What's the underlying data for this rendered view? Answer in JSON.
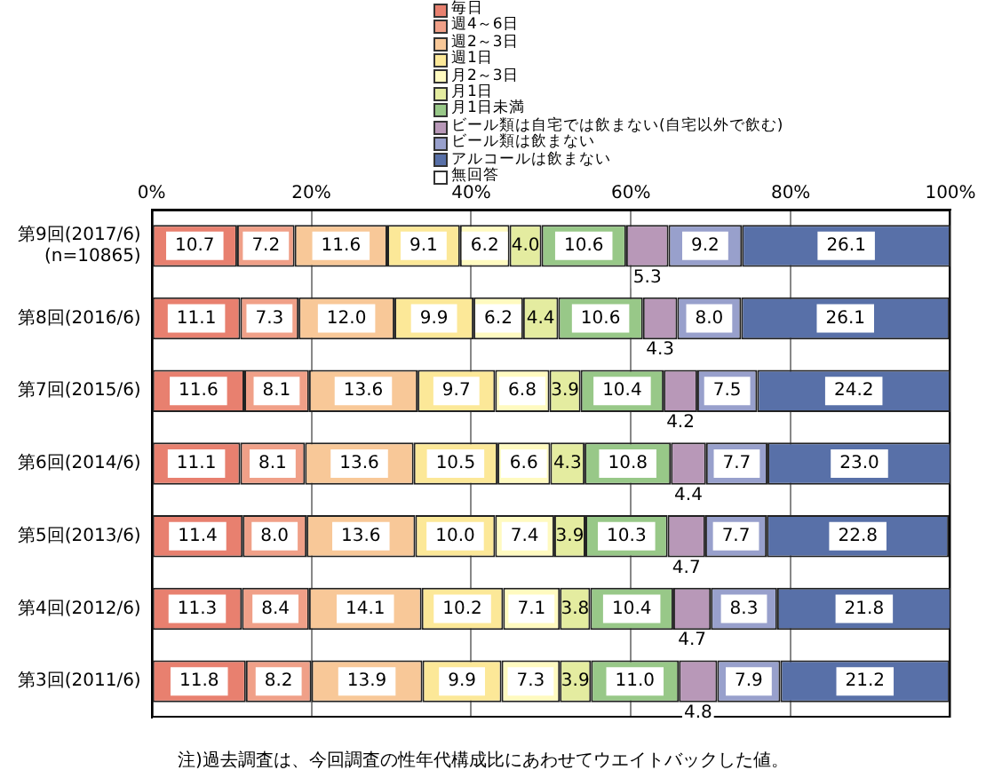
{
  "chart_data": {
    "type": "bar",
    "orientation": "horizontal",
    "stacked": true,
    "grid": "x",
    "legend": "top",
    "categories": [
      "第9回(2017/6)\n(n=10865)",
      "第8回(2016/6)",
      "第7回(2015/6)",
      "第6回(2014/6)",
      "第5回(2013/6)",
      "第4回(2012/6)",
      "第3回(2011/6)"
    ],
    "xlim": [
      0,
      100
    ],
    "xticks": [
      {
        "value": 0,
        "label": "0%"
      },
      {
        "value": 20,
        "label": "20%"
      },
      {
        "value": 40,
        "label": "40%"
      },
      {
        "value": 60,
        "label": "60%"
      },
      {
        "value": 80,
        "label": "80%"
      },
      {
        "value": 100,
        "label": "100%"
      }
    ],
    "series": [
      {
        "name": "毎日",
        "color": "#e8806f",
        "values": [
          10.7,
          11.1,
          11.6,
          11.1,
          11.4,
          11.3,
          11.8
        ],
        "value_labels": [
          "10.7",
          "11.1",
          "11.6",
          "11.1",
          "11.4",
          "11.3",
          "11.8"
        ]
      },
      {
        "name": "週4～6日",
        "color": "#f0a088",
        "values": [
          7.2,
          7.3,
          8.1,
          8.1,
          8.0,
          8.4,
          8.2
        ],
        "value_labels": [
          "7.2",
          "7.3",
          "8.1",
          "8.1",
          "8.0",
          "8.4",
          "8.2"
        ]
      },
      {
        "name": "週2～3日",
        "color": "#f8c898",
        "values": [
          11.6,
          12.0,
          13.6,
          13.6,
          13.6,
          14.1,
          13.9
        ],
        "value_labels": [
          "11.6",
          "12.0",
          "13.6",
          "13.6",
          "13.6",
          "14.1",
          "13.9"
        ]
      },
      {
        "name": "週1日",
        "color": "#fce898",
        "values": [
          9.1,
          9.9,
          9.7,
          10.5,
          10.0,
          10.2,
          9.9
        ],
        "value_labels": [
          "9.1",
          "9.9",
          "9.7",
          "10.5",
          "10.0",
          "10.2",
          "9.9"
        ]
      },
      {
        "name": "月2～3日",
        "color": "#fffac0",
        "values": [
          6.2,
          6.2,
          6.8,
          6.6,
          7.4,
          7.1,
          7.3
        ],
        "value_labels": [
          "6.2",
          "6.2",
          "6.8",
          "6.6",
          "7.4",
          "7.1",
          "7.3"
        ]
      },
      {
        "name": "月1日",
        "color": "#e4eca0",
        "values": [
          4.0,
          4.4,
          3.9,
          4.3,
          3.9,
          3.8,
          3.9
        ],
        "value_labels": [
          "4.0",
          "4.4",
          "3.9",
          "4.3",
          "3.9",
          "3.8",
          "3.9"
        ]
      },
      {
        "name": "月1日未満",
        "color": "#98c888",
        "values": [
          10.6,
          10.6,
          10.4,
          10.8,
          10.3,
          10.4,
          11.0
        ],
        "value_labels": [
          "10.6",
          "10.6",
          "10.4",
          "10.8",
          "10.3",
          "10.4",
          "11.0"
        ]
      },
      {
        "name": "ビール類は自宅では飲まない(自宅以外で飲む)",
        "color": "#b898b8",
        "values": [
          5.3,
          4.3,
          4.2,
          4.4,
          4.7,
          4.7,
          4.8
        ],
        "value_labels": [
          "5.3",
          "4.3",
          "4.2",
          "4.4",
          "4.7",
          "4.7",
          "4.8"
        ]
      },
      {
        "name": "ビール類は飲まない",
        "color": "#98a0cc",
        "values": [
          9.2,
          8.0,
          7.5,
          7.7,
          7.7,
          8.3,
          7.9
        ],
        "value_labels": [
          "9.2",
          "8.0",
          "7.5",
          "7.7",
          "7.7",
          "8.3",
          "7.9"
        ]
      },
      {
        "name": "アルコールは飲まない",
        "color": "#5870a8",
        "values": [
          26.1,
          26.1,
          24.2,
          23.0,
          22.8,
          21.8,
          21.2
        ],
        "value_labels": [
          "26.1",
          "26.1",
          "24.2",
          "23.0",
          "22.8",
          "21.8",
          "21.2"
        ]
      },
      {
        "name": "無回答",
        "color": "#ffffff",
        "values": [
          null,
          null,
          null,
          null,
          null,
          null,
          null
        ]
      }
    ],
    "annotations": [
      "注)過去調査は、今回調査の性年代構成比にあわせてウエイトバックした値。"
    ]
  }
}
